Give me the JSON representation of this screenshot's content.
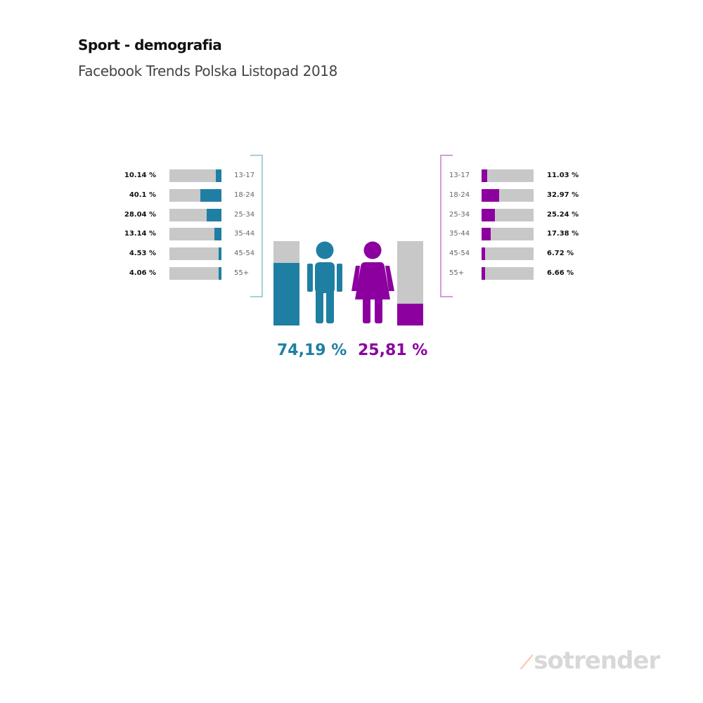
{
  "header": {
    "title": "Sport - demografia",
    "subtitle": "Facebook Trends Polska Listopad 2018"
  },
  "colors": {
    "male": "#1f7fa3",
    "female": "#8c009f",
    "track": "#c8c8c8",
    "male_bracket": "#a8cfd9",
    "female_bracket": "#d49cd9"
  },
  "male": {
    "total_label": "74,19 %",
    "total_value": 74.19,
    "ages": [
      {
        "age": "13-17",
        "label": "10.14 %",
        "value": 10.14
      },
      {
        "age": "18-24",
        "label": "40.1 %",
        "value": 40.1
      },
      {
        "age": "25-34",
        "label": "28.04 %",
        "value": 28.04
      },
      {
        "age": "35-44",
        "label": "13.14 %",
        "value": 13.14
      },
      {
        "age": "45-54",
        "label": "4.53 %",
        "value": 4.53
      },
      {
        "age": "55+",
        "label": "4.06 %",
        "value": 4.06
      }
    ]
  },
  "female": {
    "total_label": "25,81 %",
    "total_value": 25.81,
    "ages": [
      {
        "age": "13-17",
        "label": "11.03 %",
        "value": 11.03
      },
      {
        "age": "18-24",
        "label": "32.97 %",
        "value": 32.97
      },
      {
        "age": "25-34",
        "label": "25.24 %",
        "value": 25.24
      },
      {
        "age": "35-44",
        "label": "17.38 %",
        "value": 17.38
      },
      {
        "age": "45-54",
        "label": "6.72 %",
        "value": 6.72
      },
      {
        "age": "55+",
        "label": "6.66 %",
        "value": 6.66
      }
    ]
  },
  "logo": {
    "text": "sotrender"
  },
  "chart_data": {
    "type": "bar",
    "title": "Sport - demografia",
    "subtitle": "Facebook Trends Polska Listopad 2018",
    "categories": [
      "13-17",
      "18-24",
      "25-34",
      "35-44",
      "45-54",
      "55+"
    ],
    "series": [
      {
        "name": "Mężczyźni",
        "total": 74.19,
        "values": [
          10.14,
          40.1,
          28.04,
          13.14,
          4.53,
          4.06
        ]
      },
      {
        "name": "Kobiety",
        "total": 25.81,
        "values": [
          11.03,
          32.97,
          25.24,
          17.38,
          6.72,
          6.66
        ]
      }
    ],
    "orientation": "horizontal",
    "ylim": [
      0,
      100
    ],
    "grid": false
  }
}
